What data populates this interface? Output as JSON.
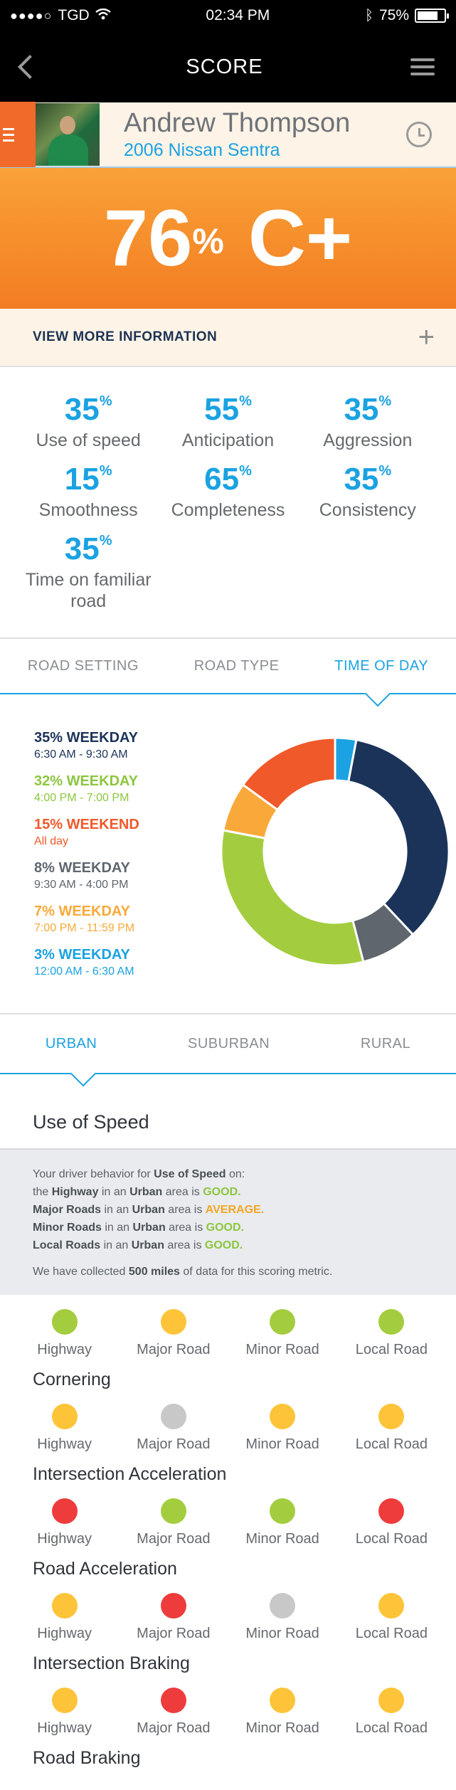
{
  "status": {
    "carrier": "TGD",
    "time": "02:34 PM",
    "battery": "75%"
  },
  "nav": {
    "title": "SCORE"
  },
  "profile": {
    "name": "Andrew Thompson",
    "car": "2006 Nissan Sentra"
  },
  "score": {
    "percent": "76",
    "unit": "%",
    "grade": "C+"
  },
  "view_more": {
    "label": "VIEW MORE INFORMATION",
    "icon": "plus-icon"
  },
  "metrics": [
    {
      "value": "35",
      "unit": "%",
      "label": "Use of speed"
    },
    {
      "value": "55",
      "unit": "%",
      "label": "Anticipation"
    },
    {
      "value": "35",
      "unit": "%",
      "label": "Aggression"
    },
    {
      "value": "15",
      "unit": "%",
      "label": "Smoothness"
    },
    {
      "value": "65",
      "unit": "%",
      "label": "Completeness"
    },
    {
      "value": "35",
      "unit": "%",
      "label": "Consistency"
    },
    {
      "value": "35",
      "unit": "%",
      "label": "Time on familiar road"
    }
  ],
  "tabs": [
    "ROAD SETTING",
    "ROAD TYPE",
    "TIME OF DAY"
  ],
  "chart_data": {
    "type": "pie",
    "series": [
      {
        "title": "35% WEEKDAY",
        "subtitle": "6:30 AM - 9:30 AM",
        "value": 35,
        "color": "#1b3358"
      },
      {
        "title": "32% WEEKDAY",
        "subtitle": "4:00 PM - 7:00 PM",
        "value": 32,
        "color": "#a3cd3e"
      },
      {
        "title": "15% WEEKEND",
        "subtitle": "All day",
        "value": 15,
        "color": "#f0592a"
      },
      {
        "title": "8% WEEKDAY",
        "subtitle": "9:30 AM - 4:00 PM",
        "value": 8,
        "color": "#5f666d"
      },
      {
        "title": "7% WEEKDAY",
        "subtitle": "7:00 PM - 11:59 PM",
        "value": 7,
        "color": "#f9a93a"
      },
      {
        "title": "3% WEEKDAY",
        "subtitle": "12:00 AM - 6:30 AM",
        "value": 3,
        "color": "#1aa2e2"
      }
    ],
    "donut_order": [
      5,
      0,
      3,
      1,
      4,
      2
    ]
  },
  "area_tabs": [
    "URBAN",
    "SUBURBAN",
    "RURAL"
  ],
  "section_title": "Use of Speed",
  "note": {
    "intro_pre": "Your driver behavior for ",
    "intro_bold": "Use of Speed",
    "intro_post": " on:",
    "lines": [
      {
        "road": "Highway",
        "pre": "the ",
        "mid": " in an ",
        "area": "Urban",
        "post": " area is ",
        "rating": "GOOD.",
        "cls": "good"
      },
      {
        "road": "Major Roads",
        "pre": "",
        "mid": " in an ",
        "area": "Urban",
        "post": " area is ",
        "rating": "AVERAGE.",
        "cls": "avg"
      },
      {
        "road": "Minor Roads",
        "pre": "",
        "mid": " in an ",
        "area": "Urban",
        "post": " area is ",
        "rating": "GOOD.",
        "cls": "good"
      },
      {
        "road": "Local Roads",
        "pre": "",
        "mid": " in an ",
        "area": "Urban",
        "post": " area is ",
        "rating": "GOOD.",
        "cls": "good"
      }
    ],
    "collected_pre": "We have collected ",
    "collected_bold": "500 miles",
    "collected_post": " of data for this scoring metric."
  },
  "road_labels": [
    "Highway",
    "Major Road",
    "Minor Road",
    "Local Road"
  ],
  "colors": {
    "green": "#a3cd3e",
    "yellow": "#fdc43a",
    "gray": "#c8c8c8",
    "red": "#ee3c3c"
  },
  "rows": [
    {
      "title": "",
      "ratings": [
        "green",
        "yellow",
        "green",
        "green"
      ]
    },
    {
      "title": "Cornering",
      "ratings": [
        "yellow",
        "gray",
        "yellow",
        "yellow"
      ]
    },
    {
      "title": "Intersection Acceleration",
      "ratings": [
        "red",
        "green",
        "green",
        "red"
      ]
    },
    {
      "title": "Road Acceleration",
      "ratings": [
        "yellow",
        "red",
        "gray",
        "yellow"
      ]
    },
    {
      "title": "Intersection Braking",
      "ratings": [
        "yellow",
        "red",
        "yellow",
        "yellow"
      ]
    },
    {
      "title": "Road Braking",
      "ratings": []
    }
  ]
}
